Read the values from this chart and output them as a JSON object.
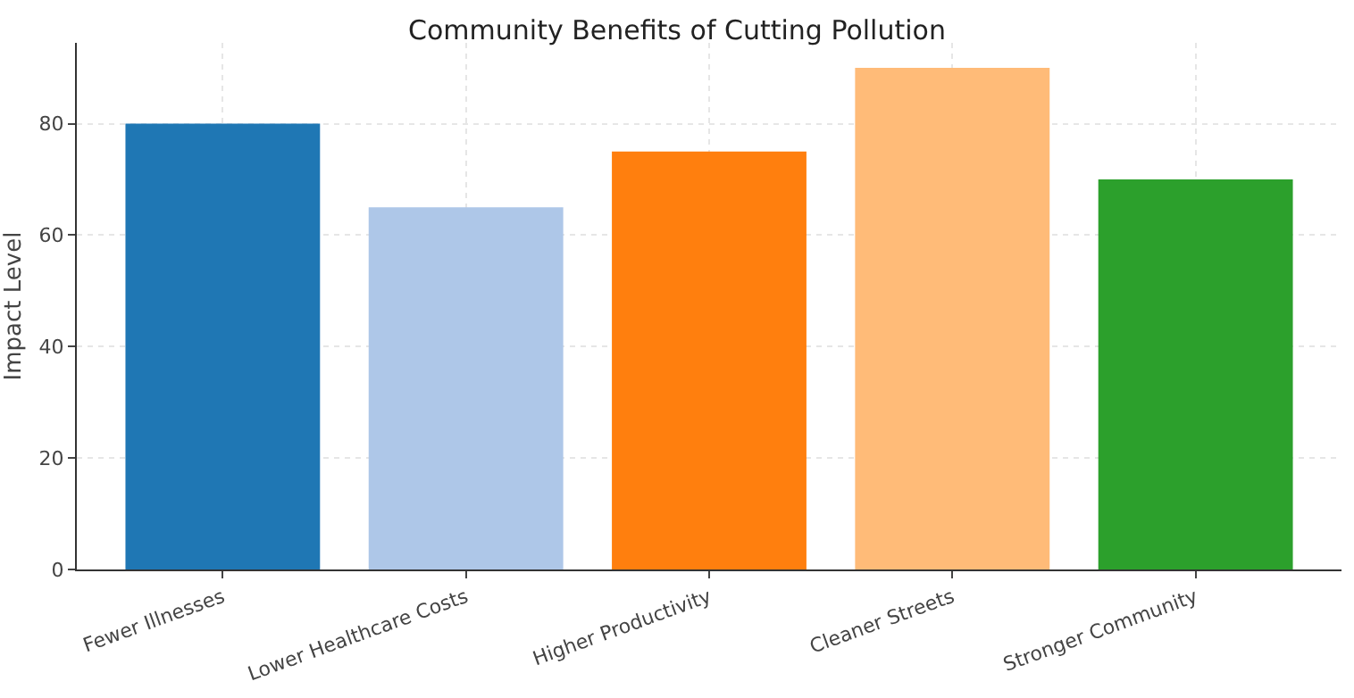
{
  "chart_data": {
    "type": "bar",
    "title": "Community Benefits of Cutting Pollution",
    "ylabel": "Impact Level",
    "categories": [
      "Fewer Illnesses",
      "Lower Healthcare Costs",
      "Higher Productivity",
      "Cleaner Streets",
      "Stronger Community"
    ],
    "values": [
      80,
      65,
      75,
      90,
      70
    ],
    "colors": [
      "#1f77b4",
      "#aec7e8",
      "#ff7f0e",
      "#ffbb78",
      "#2ca02c"
    ],
    "ylim": [
      0,
      94.5
    ],
    "yticks": [
      0,
      20,
      40,
      60,
      80
    ],
    "grid": true
  }
}
